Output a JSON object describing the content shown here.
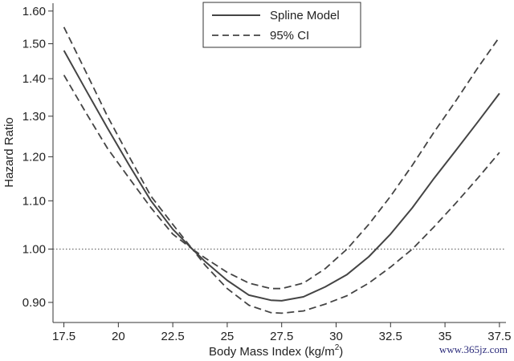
{
  "chart_data": {
    "type": "line",
    "title": "",
    "xlabel": "Body Mass Index (kg/m",
    "xlabel_sup": "2",
    "xlabel_tail": ")",
    "ylabel": "Hazard Ratio",
    "xlim": [
      17.0,
      37.8
    ],
    "ylim": [
      0.865,
      1.625
    ],
    "y_scale": "log",
    "x_ticks": [
      17.5,
      20,
      22.5,
      25,
      27.5,
      30,
      32.5,
      35,
      37.5
    ],
    "x_tick_labels": [
      "17.5",
      "20",
      "22.5",
      "25",
      "27.5",
      "30",
      "32.5",
      "35",
      "37.5"
    ],
    "y_ticks": [
      0.9,
      1.0,
      1.1,
      1.2,
      1.3,
      1.4,
      1.5,
      1.6
    ],
    "y_tick_labels": [
      "0.90",
      "1.00",
      "1.10",
      "1.20",
      "1.30",
      "1.40",
      "1.50",
      "1.60"
    ],
    "reference_line": 1.0,
    "grid": false,
    "legend_position": "top-center",
    "series": [
      {
        "name": "Spline Model",
        "style": "solid",
        "x": [
          17.5,
          18.5,
          19.5,
          20.5,
          21.5,
          22.5,
          23.4,
          24.0,
          25.0,
          26.0,
          27.0,
          27.5,
          28.5,
          29.5,
          30.5,
          31.5,
          32.5,
          33.5,
          34.5,
          35.5,
          36.5,
          37.5
        ],
        "y": [
          1.48,
          1.37,
          1.27,
          1.18,
          1.1,
          1.04,
          1.0,
          0.975,
          0.94,
          0.913,
          0.904,
          0.903,
          0.91,
          0.928,
          0.951,
          0.985,
          1.03,
          1.085,
          1.15,
          1.215,
          1.285,
          1.36
        ]
      },
      {
        "name": "95% CI",
        "style": "dashed",
        "x": [
          17.5,
          18.5,
          19.5,
          20.5,
          21.5,
          22.5,
          23.4,
          24.0,
          25.0,
          26.0,
          27.0,
          27.5,
          28.5,
          29.5,
          30.5,
          31.5,
          32.5,
          33.5,
          34.5,
          35.5,
          36.5,
          37.5
        ],
        "y": [
          1.55,
          1.42,
          1.3,
          1.2,
          1.11,
          1.05,
          1.0,
          0.982,
          0.955,
          0.935,
          0.925,
          0.925,
          0.935,
          0.962,
          1.0,
          1.05,
          1.11,
          1.18,
          1.26,
          1.34,
          1.43,
          1.52
        ]
      },
      {
        "name": "",
        "style": "dashed",
        "x": [
          17.5,
          18.5,
          19.5,
          20.5,
          21.5,
          22.5,
          23.4,
          24.0,
          25.0,
          26.0,
          27.0,
          27.5,
          28.5,
          29.5,
          30.5,
          31.5,
          32.5,
          33.5,
          34.5,
          35.5,
          36.5,
          37.5
        ],
        "y": [
          1.41,
          1.31,
          1.22,
          1.15,
          1.085,
          1.03,
          1.0,
          0.968,
          0.925,
          0.895,
          0.882,
          0.881,
          0.885,
          0.897,
          0.912,
          0.935,
          0.965,
          1.0,
          1.045,
          1.095,
          1.15,
          1.21
        ]
      }
    ]
  },
  "watermark": "www.365jz.com"
}
